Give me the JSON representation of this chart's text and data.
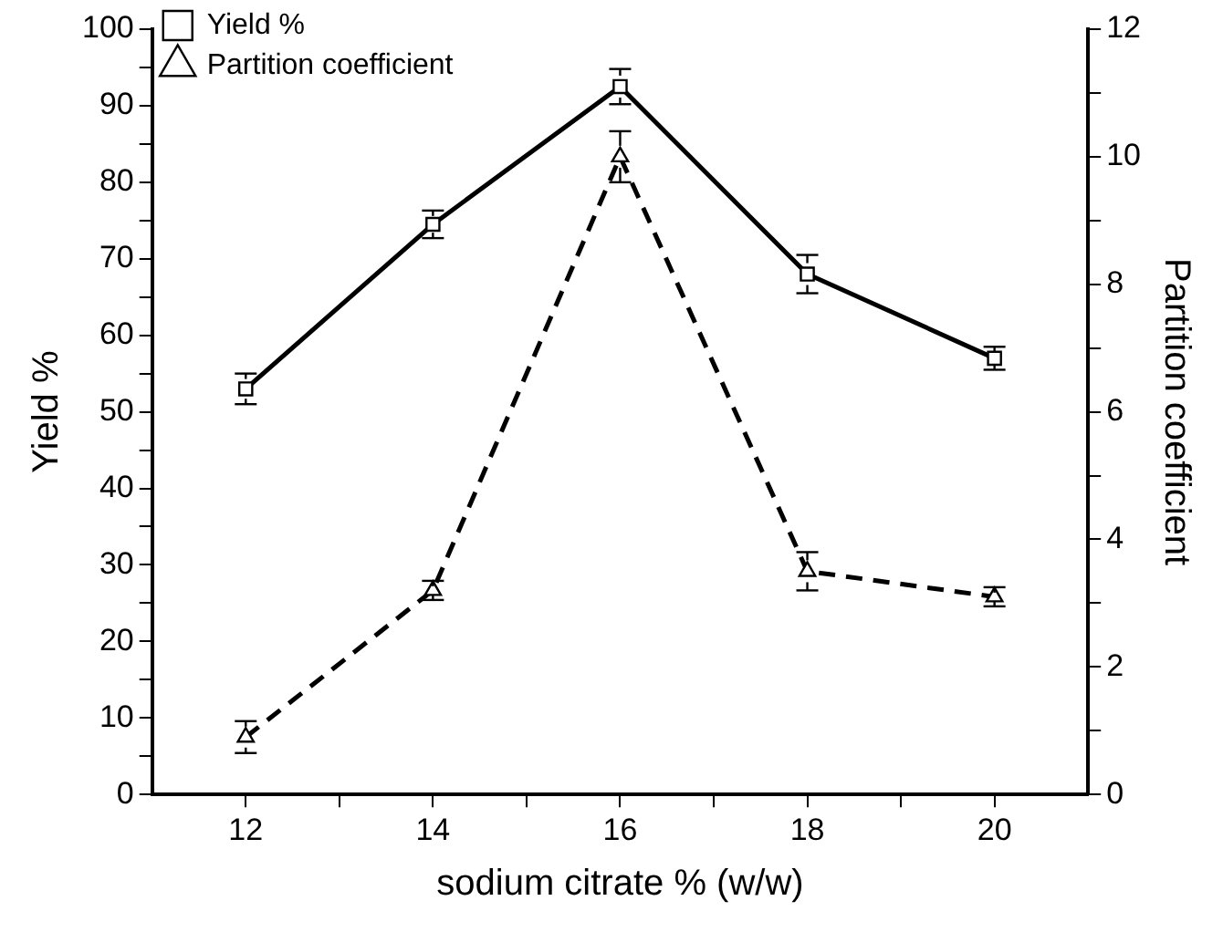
{
  "chart_data": {
    "type": "line",
    "xlabel": "sodium citrate % (w/w)",
    "ylabel": "Yield %",
    "y2label": "Partition coefficient",
    "x": [
      12,
      14,
      16,
      18,
      20
    ],
    "xlim": [
      11,
      21
    ],
    "xticks": [
      12,
      {
        "value": 13,
        "label": null
      },
      14,
      {
        "value": 15,
        "label": null
      },
      16,
      {
        "value": 17,
        "label": null
      },
      18,
      {
        "value": 19,
        "label": null
      },
      20
    ],
    "ylim": [
      0,
      100
    ],
    "yticks": [
      0,
      {
        "value": 5,
        "label": null
      },
      10,
      {
        "value": 15,
        "label": null
      },
      20,
      {
        "value": 25,
        "label": null
      },
      30,
      {
        "value": 35,
        "label": null
      },
      40,
      {
        "value": 45,
        "label": null
      },
      50,
      {
        "value": 55,
        "label": null
      },
      60,
      {
        "value": 65,
        "label": null
      },
      70,
      {
        "value": 75,
        "label": null
      },
      80,
      {
        "value": 85,
        "label": null
      },
      90,
      {
        "value": 95,
        "label": null
      },
      100
    ],
    "y2lim": [
      0,
      12
    ],
    "y2ticks": [
      0,
      {
        "value": 1,
        "label": null
      },
      2,
      {
        "value": 3,
        "label": null
      },
      4,
      {
        "value": 5,
        "label": null
      },
      6,
      {
        "value": 7,
        "label": null
      },
      8,
      {
        "value": 9,
        "label": null
      },
      10,
      {
        "value": 11,
        "label": null
      },
      12
    ],
    "series": [
      {
        "name": "Yield %",
        "color": "#000000",
        "values": [
          53,
          74.5,
          92.5,
          68,
          57
        ],
        "errors": [
          2,
          1.8,
          2.3,
          2.5,
          1.5
        ],
        "marker": "square",
        "line_style": "solid"
      },
      {
        "name": "Partition coefficient",
        "color": "#000000",
        "axis": "y2",
        "values": [
          0.9,
          3.2,
          10,
          3.5,
          3.1
        ],
        "errors": [
          0.25,
          0.15,
          0.4,
          0.3,
          0.15
        ],
        "marker": "triangle",
        "line_style": "dashed"
      }
    ],
    "grid": false,
    "legend": "top left"
  }
}
